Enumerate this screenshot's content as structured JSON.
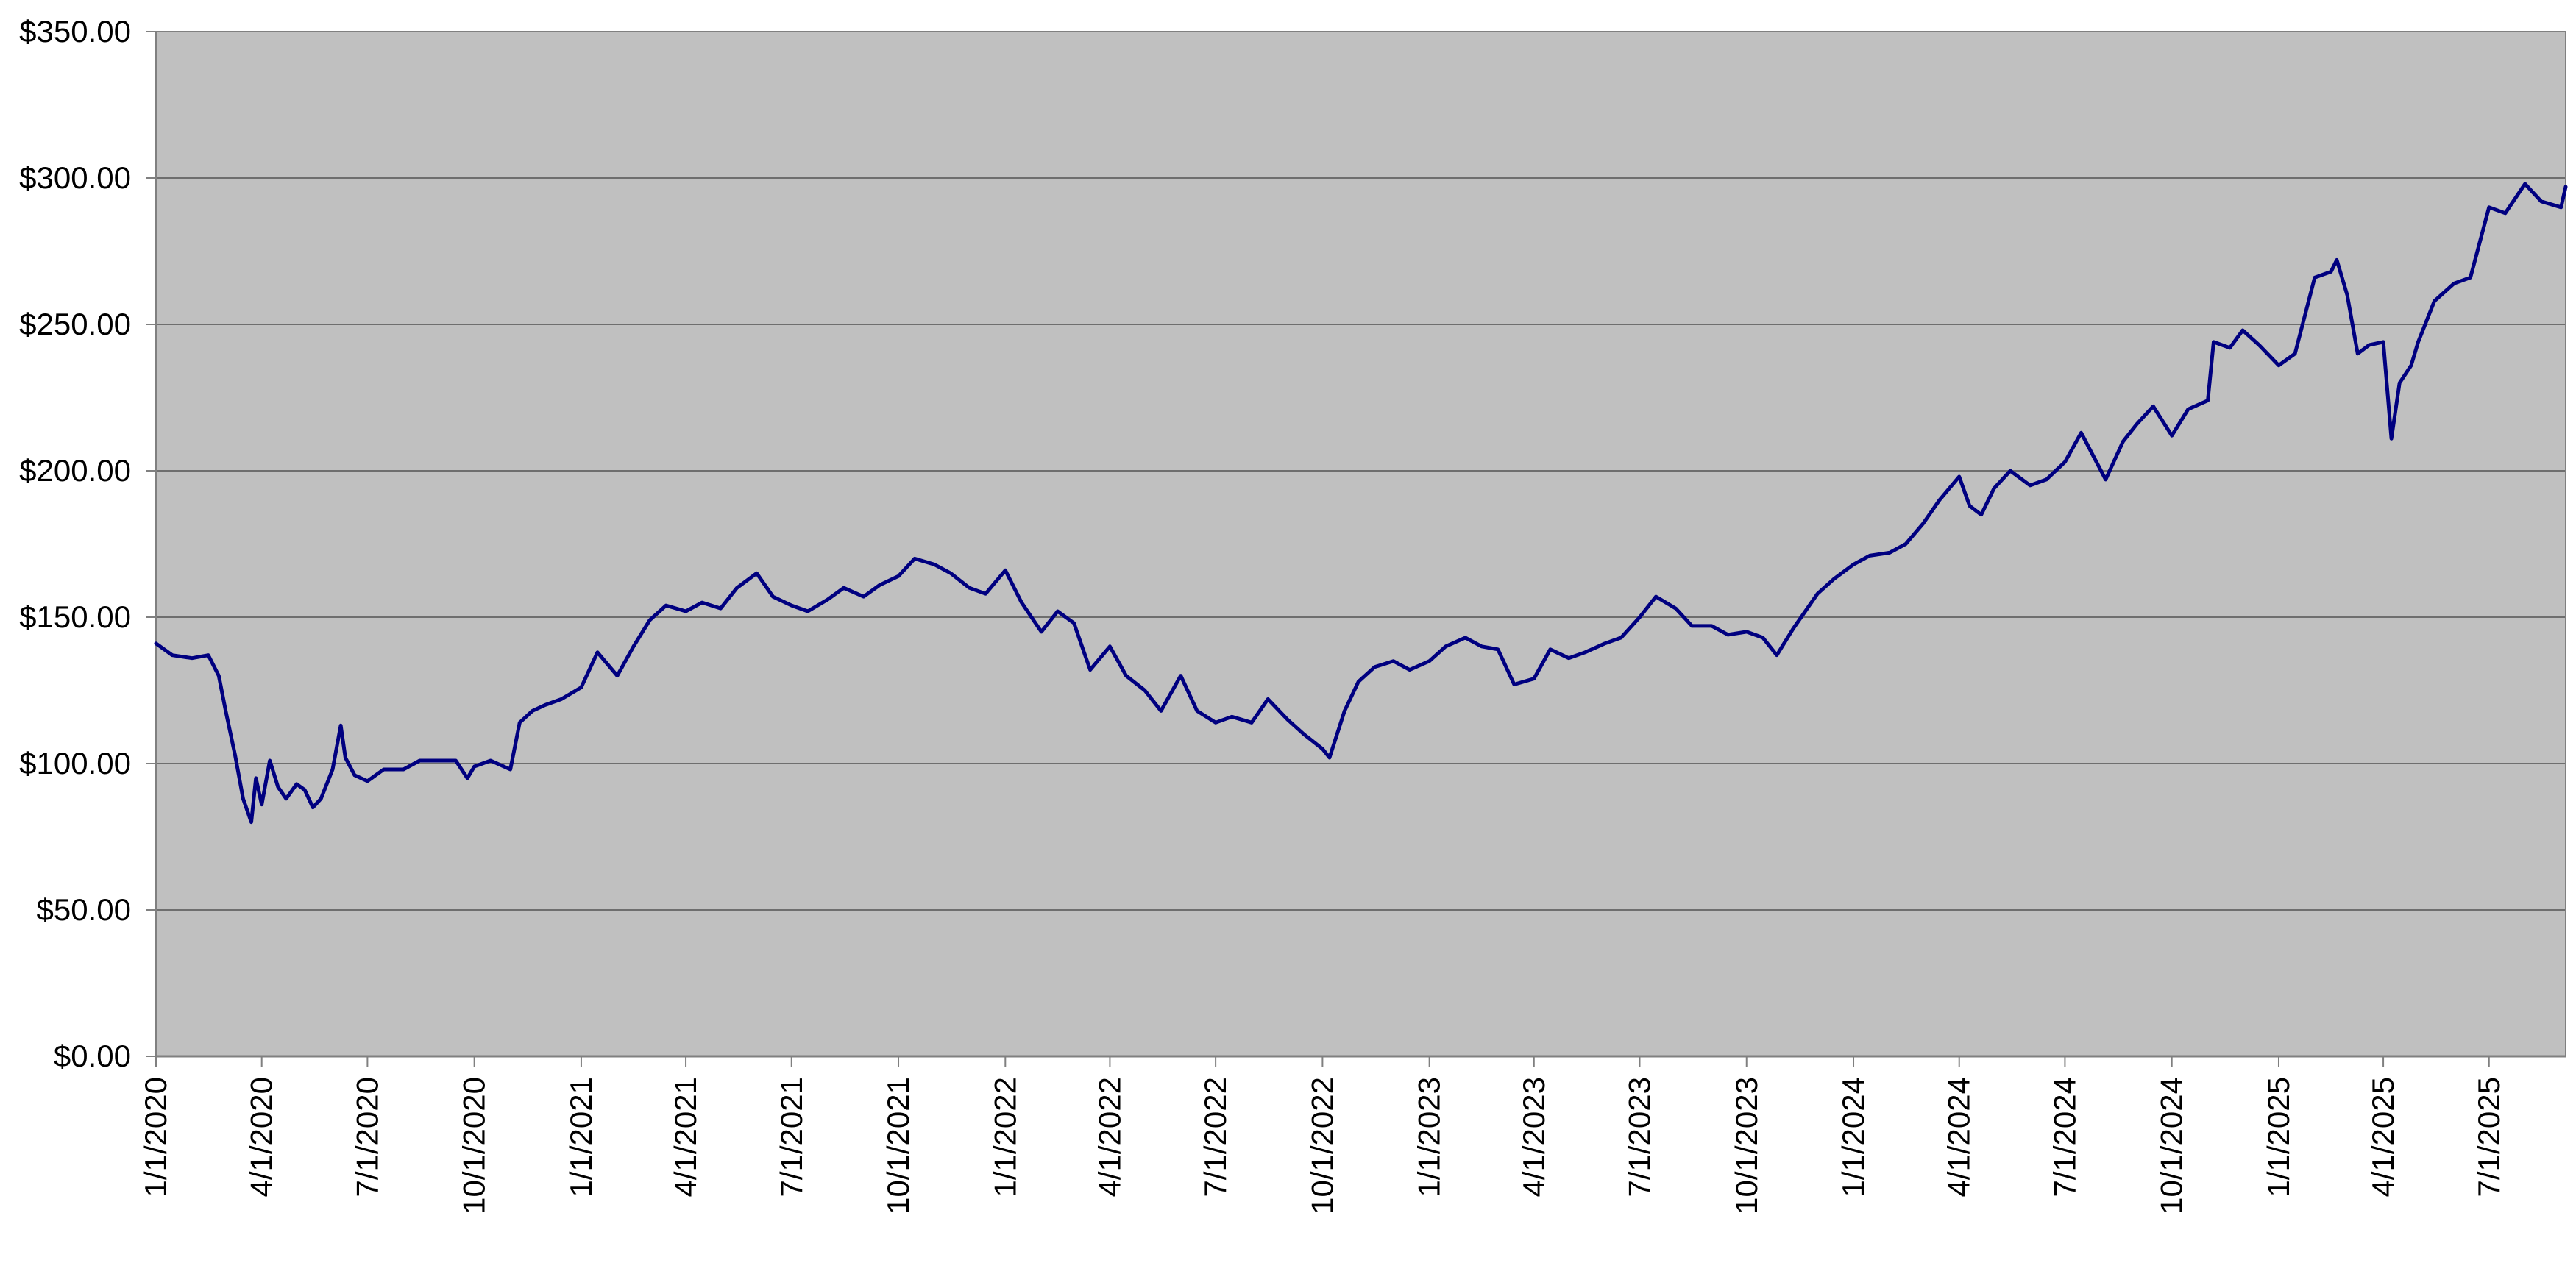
{
  "chart_data": {
    "type": "line",
    "title": "",
    "xlabel": "",
    "ylabel": "",
    "x_range": [
      "1/1/2020",
      "9/5/2025"
    ],
    "ylim": [
      0,
      350
    ],
    "y_ticks": [
      "$0.00",
      "$50.00",
      "$100.00",
      "$150.00",
      "$200.00",
      "$250.00",
      "$300.00",
      "$350.00"
    ],
    "x_ticks": [
      "1/1/2020",
      "4/1/2020",
      "7/1/2020",
      "10/1/2020",
      "1/1/2021",
      "4/1/2021",
      "7/1/2021",
      "10/1/2021",
      "1/1/2022",
      "4/1/2022",
      "7/1/2022",
      "10/1/2022",
      "1/1/2023",
      "4/1/2023",
      "7/1/2023",
      "10/1/2023",
      "1/1/2024",
      "4/1/2024",
      "7/1/2024",
      "10/1/2024",
      "1/1/2025",
      "4/1/2025",
      "7/1/2025"
    ],
    "grid": {
      "horizontal": true,
      "vertical": false
    },
    "legend": "none",
    "colors": {
      "plot_background": "#c0c0c0",
      "line": "#000080",
      "gridline": "#6e6e6e",
      "axis": "#808080"
    },
    "series": [
      {
        "values": [
          [
            "1/1/2020",
            141
          ],
          [
            "1/15/2020",
            137
          ],
          [
            "2/1/2020",
            136
          ],
          [
            "2/15/2020",
            137
          ],
          [
            "2/24/2020",
            130
          ],
          [
            "3/1/2020",
            118
          ],
          [
            "3/9/2020",
            103
          ],
          [
            "3/16/2020",
            88
          ],
          [
            "3/23/2020",
            80
          ],
          [
            "3/27/2020",
            95
          ],
          [
            "4/1/2020",
            86
          ],
          [
            "4/8/2020",
            101
          ],
          [
            "4/15/2020",
            92
          ],
          [
            "4/22/2020",
            88
          ],
          [
            "5/1/2020",
            93
          ],
          [
            "5/8/2020",
            91
          ],
          [
            "5/15/2020",
            85
          ],
          [
            "5/22/2020",
            88
          ],
          [
            "6/1/2020",
            98
          ],
          [
            "6/8/2020",
            113
          ],
          [
            "6/12/2020",
            102
          ],
          [
            "6/20/2020",
            96
          ],
          [
            "7/1/2020",
            94
          ],
          [
            "7/15/2020",
            98
          ],
          [
            "8/1/2020",
            98
          ],
          [
            "8/15/2020",
            101
          ],
          [
            "9/1/2020",
            101
          ],
          [
            "9/15/2020",
            101
          ],
          [
            "9/25/2020",
            95
          ],
          [
            "10/1/2020",
            99
          ],
          [
            "10/15/2020",
            101
          ],
          [
            "11/1/2020",
            98
          ],
          [
            "11/9/2020",
            114
          ],
          [
            "11/20/2020",
            118
          ],
          [
            "12/1/2020",
            120
          ],
          [
            "12/15/2020",
            122
          ],
          [
            "1/1/2021",
            126
          ],
          [
            "1/15/2021",
            138
          ],
          [
            "2/1/2021",
            130
          ],
          [
            "2/15/2021",
            140
          ],
          [
            "3/1/2021",
            149
          ],
          [
            "3/15/2021",
            154
          ],
          [
            "4/1/2021",
            152
          ],
          [
            "4/15/2021",
            155
          ],
          [
            "5/1/2021",
            153
          ],
          [
            "5/15/2021",
            160
          ],
          [
            "6/1/2021",
            165
          ],
          [
            "6/15/2021",
            157
          ],
          [
            "7/1/2021",
            154
          ],
          [
            "7/15/2021",
            152
          ],
          [
            "8/1/2021",
            156
          ],
          [
            "8/15/2021",
            160
          ],
          [
            "9/1/2021",
            157
          ],
          [
            "9/15/2021",
            161
          ],
          [
            "10/1/2021",
            164
          ],
          [
            "10/15/2021",
            170
          ],
          [
            "11/1/2021",
            168
          ],
          [
            "11/15/2021",
            165
          ],
          [
            "12/1/2021",
            160
          ],
          [
            "12/15/2021",
            158
          ],
          [
            "1/1/2022",
            166
          ],
          [
            "1/15/2022",
            155
          ],
          [
            "2/1/2022",
            145
          ],
          [
            "2/15/2022",
            152
          ],
          [
            "3/1/2022",
            148
          ],
          [
            "3/15/2022",
            132
          ],
          [
            "4/1/2022",
            140
          ],
          [
            "4/15/2022",
            130
          ],
          [
            "5/1/2022",
            125
          ],
          [
            "5/15/2022",
            118
          ],
          [
            "6/1/2022",
            130
          ],
          [
            "6/15/2022",
            118
          ],
          [
            "7/1/2022",
            114
          ],
          [
            "7/15/2022",
            116
          ],
          [
            "8/1/2022",
            114
          ],
          [
            "8/15/2022",
            122
          ],
          [
            "9/1/2022",
            115
          ],
          [
            "9/15/2022",
            110
          ],
          [
            "10/1/2022",
            105
          ],
          [
            "10/7/2022",
            102
          ],
          [
            "10/20/2022",
            118
          ],
          [
            "11/1/2022",
            128
          ],
          [
            "11/15/2022",
            133
          ],
          [
            "12/1/2022",
            135
          ],
          [
            "12/15/2022",
            132
          ],
          [
            "1/1/2023",
            135
          ],
          [
            "1/15/2023",
            140
          ],
          [
            "2/1/2023",
            143
          ],
          [
            "2/15/2023",
            140
          ],
          [
            "3/1/2023",
            139
          ],
          [
            "3/15/2023",
            127
          ],
          [
            "4/1/2023",
            129
          ],
          [
            "4/15/2023",
            139
          ],
          [
            "5/1/2023",
            136
          ],
          [
            "5/15/2023",
            138
          ],
          [
            "6/1/2023",
            141
          ],
          [
            "6/15/2023",
            143
          ],
          [
            "7/1/2023",
            150
          ],
          [
            "7/15/2023",
            157
          ],
          [
            "8/1/2023",
            153
          ],
          [
            "8/15/2023",
            147
          ],
          [
            "9/1/2023",
            147
          ],
          [
            "9/15/2023",
            144
          ],
          [
            "10/1/2023",
            145
          ],
          [
            "10/15/2023",
            143
          ],
          [
            "10/27/2023",
            137
          ],
          [
            "11/10/2023",
            146
          ],
          [
            "12/1/2023",
            158
          ],
          [
            "12/15/2023",
            163
          ],
          [
            "1/1/2024",
            168
          ],
          [
            "1/15/2024",
            171
          ],
          [
            "2/1/2024",
            172
          ],
          [
            "2/15/2024",
            175
          ],
          [
            "3/1/2024",
            182
          ],
          [
            "3/15/2024",
            190
          ],
          [
            "4/1/2024",
            198
          ],
          [
            "4/10/2024",
            188
          ],
          [
            "4/20/2024",
            185
          ],
          [
            "5/1/2024",
            194
          ],
          [
            "5/15/2024",
            200
          ],
          [
            "6/1/2024",
            195
          ],
          [
            "6/15/2024",
            197
          ],
          [
            "7/1/2024",
            203
          ],
          [
            "7/15/2024",
            213
          ],
          [
            "8/5/2024",
            197
          ],
          [
            "8/20/2024",
            210
          ],
          [
            "9/1/2024",
            216
          ],
          [
            "9/15/2024",
            222
          ],
          [
            "10/1/2024",
            212
          ],
          [
            "10/15/2024",
            221
          ],
          [
            "11/1/2024",
            224
          ],
          [
            "11/6/2024",
            244
          ],
          [
            "11/20/2024",
            242
          ],
          [
            "12/1/2024",
            248
          ],
          [
            "12/15/2024",
            243
          ],
          [
            "1/1/2025",
            236
          ],
          [
            "1/15/2025",
            240
          ],
          [
            "2/1/2025",
            266
          ],
          [
            "2/15/2025",
            268
          ],
          [
            "2/20/2025",
            272
          ],
          [
            "3/1/2025",
            260
          ],
          [
            "3/10/2025",
            240
          ],
          [
            "3/20/2025",
            243
          ],
          [
            "4/1/2025",
            244
          ],
          [
            "4/8/2025",
            211
          ],
          [
            "4/15/2025",
            230
          ],
          [
            "4/25/2025",
            236
          ],
          [
            "5/1/2025",
            244
          ],
          [
            "5/15/2025",
            258
          ],
          [
            "6/1/2025",
            264
          ],
          [
            "6/15/2025",
            266
          ],
          [
            "7/1/2025",
            290
          ],
          [
            "7/15/2025",
            288
          ],
          [
            "8/1/2025",
            298
          ],
          [
            "8/15/2025",
            292
          ],
          [
            "9/1/2025",
            290
          ],
          [
            "9/5/2025",
            297
          ]
        ]
      }
    ]
  }
}
